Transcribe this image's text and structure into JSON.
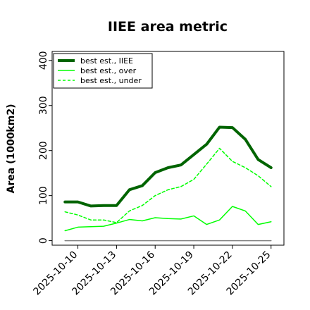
{
  "chart_data": {
    "type": "line",
    "title": "IIEE area metric",
    "xlabel": "",
    "ylabel": "Area (1000km2)",
    "xlim": [
      "2025-10-08",
      "2025-10-26"
    ],
    "ylim": [
      -10,
      420
    ],
    "x_ticks": [
      "2025-10-10",
      "2025-10-13",
      "2025-10-16",
      "2025-10-19",
      "2025-10-22",
      "2025-10-25"
    ],
    "y_ticks": [
      0,
      100,
      200,
      300,
      400
    ],
    "grid": false,
    "legend_position": "top-left",
    "x": [
      "2025-10-09",
      "2025-10-10",
      "2025-10-11",
      "2025-10-12",
      "2025-10-13",
      "2025-10-14",
      "2025-10-15",
      "2025-10-16",
      "2025-10-17",
      "2025-10-18",
      "2025-10-19",
      "2025-10-20",
      "2025-10-21",
      "2025-10-22",
      "2025-10-23",
      "2025-10-24",
      "2025-10-25"
    ],
    "series": [
      {
        "name": "best est., IIEE",
        "color": "#006400",
        "style": "solid-thick",
        "values": [
          86,
          86,
          77,
          78,
          78,
          113,
          122,
          151,
          162,
          168,
          191,
          214,
          252,
          251,
          225,
          180,
          162
        ]
      },
      {
        "name": "best est., over",
        "color": "#00ff00",
        "style": "solid",
        "values": [
          22,
          30,
          31,
          32,
          39,
          47,
          44,
          51,
          49,
          48,
          55,
          36,
          46,
          76,
          66,
          36,
          42
        ]
      },
      {
        "name": "best est., under",
        "color": "#00ff00",
        "style": "dashed",
        "values": [
          64,
          57,
          46,
          46,
          40,
          66,
          78,
          100,
          113,
          120,
          136,
          170,
          205,
          176,
          162,
          144,
          120
        ]
      },
      {
        "values": [
          0,
          0,
          0,
          0,
          0,
          0,
          0,
          0,
          0,
          0,
          0,
          0,
          0,
          0,
          0,
          0,
          0
        ],
        "color": "#808080",
        "style": "solid-thin"
      }
    ]
  }
}
